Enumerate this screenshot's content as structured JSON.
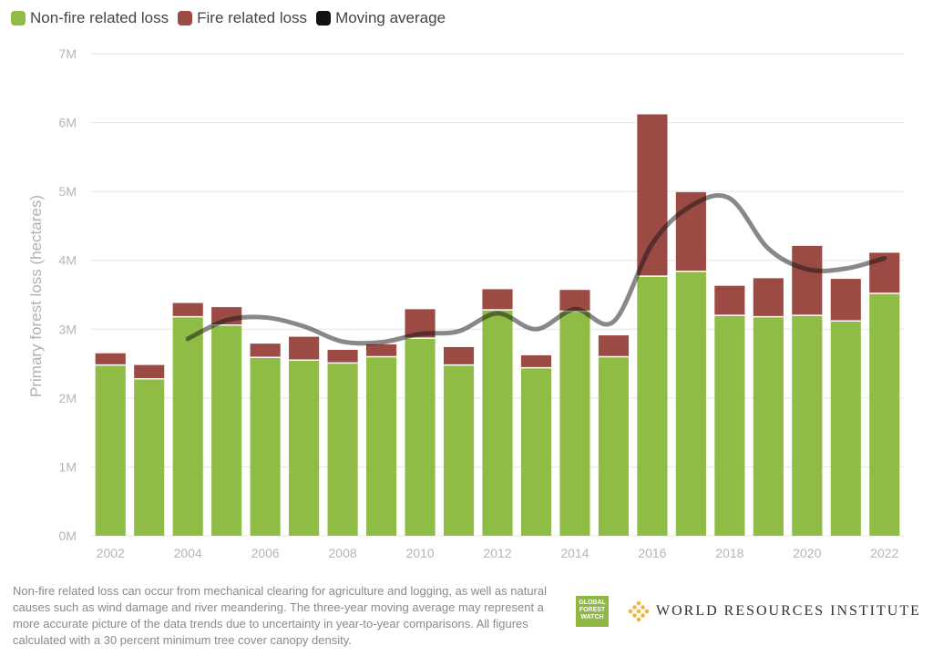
{
  "legend": {
    "items": [
      {
        "label": "Non-fire related loss",
        "color": "#8fbc45"
      },
      {
        "label": "Fire related loss",
        "color": "#9b4b44"
      },
      {
        "label": "Moving average",
        "color": "#111111"
      }
    ]
  },
  "chart_data": {
    "type": "bar",
    "stacked": true,
    "ylabel": "Primary forest loss (hectares)",
    "ylim": [
      0,
      7000000
    ],
    "yticks": [
      0,
      1000000,
      2000000,
      3000000,
      4000000,
      5000000,
      6000000,
      7000000
    ],
    "ytick_labels": [
      "0M",
      "1M",
      "2M",
      "3M",
      "4M",
      "5M",
      "6M",
      "7M"
    ],
    "categories": [
      "2002",
      "2003",
      "2004",
      "2005",
      "2006",
      "2007",
      "2008",
      "2009",
      "2010",
      "2011",
      "2012",
      "2013",
      "2014",
      "2015",
      "2016",
      "2017",
      "2018",
      "2019",
      "2020",
      "2021",
      "2022"
    ],
    "xtick_labels": [
      "2002",
      "2004",
      "2006",
      "2008",
      "2010",
      "2012",
      "2014",
      "2016",
      "2018",
      "2020",
      "2022"
    ],
    "series": [
      {
        "name": "Non-fire related loss",
        "color": "#8fbc45",
        "values": [
          2480000,
          2280000,
          3180000,
          3060000,
          2590000,
          2550000,
          2510000,
          2600000,
          2870000,
          2480000,
          3280000,
          2440000,
          3260000,
          2600000,
          3770000,
          3840000,
          3200000,
          3180000,
          3200000,
          3120000,
          3520000
        ]
      },
      {
        "name": "Fire related loss",
        "color": "#9b4b44",
        "values": [
          170000,
          200000,
          200000,
          260000,
          200000,
          340000,
          190000,
          180000,
          420000,
          260000,
          300000,
          180000,
          310000,
          310000,
          2350000,
          1150000,
          430000,
          560000,
          1010000,
          610000,
          590000
        ]
      },
      {
        "name": "Moving average",
        "type": "line",
        "color": "#111111",
        "x": [
          "2004",
          "2005",
          "2006",
          "2007",
          "2008",
          "2009",
          "2010",
          "2011",
          "2012",
          "2013",
          "2014",
          "2015",
          "2016",
          "2017",
          "2018",
          "2019",
          "2020",
          "2021",
          "2022"
        ],
        "values": [
          2860000,
          3130000,
          3170000,
          3040000,
          2820000,
          2810000,
          2930000,
          2970000,
          3230000,
          3000000,
          3290000,
          3110000,
          4240000,
          4790000,
          4900000,
          4170000,
          3870000,
          3880000,
          4030000
        ]
      }
    ]
  },
  "footnote": "Non-fire related loss can occur from mechanical clearing for agriculture and logging, as well as natural causes such as wind damage and river meandering. The three-year moving average may represent a more accurate picture of the data trends due to uncertainty in year-to-year comparisons. All figures calculated with a 30 percent minimum tree cover canopy density.",
  "logos": {
    "gfw_lines": [
      "GLOBAL",
      "FOREST",
      "WATCH"
    ],
    "wri": "WORLD RESOURCES INSTITUTE"
  }
}
